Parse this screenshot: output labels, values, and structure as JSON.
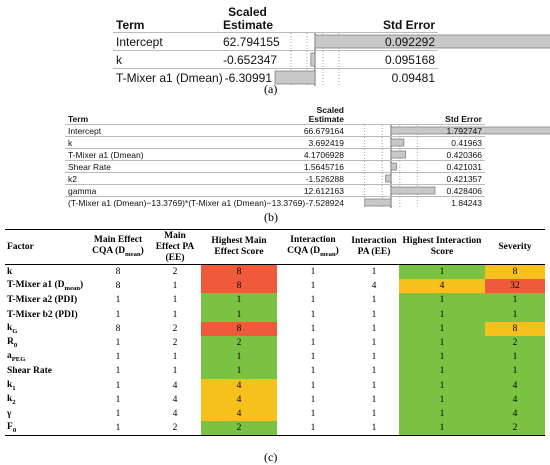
{
  "panel_a": {
    "caption": "(a)",
    "header": [
      "Term",
      "Scaled Estimate",
      "Std Error"
    ],
    "rows": [
      {
        "term": "Intercept",
        "estimate": 62.794155,
        "std_error": 0.092292
      },
      {
        "term": "k",
        "estimate": -0.652347,
        "std_error": 0.095168
      },
      {
        "term": "T-Mixer a1 (Dmean)",
        "estimate": -6.30991,
        "std_error": 0.09481
      }
    ]
  },
  "panel_b": {
    "caption": "(b)",
    "header": [
      "Term",
      "Scaled Estimate",
      "Std Error"
    ],
    "rows": [
      {
        "term": "Intercept",
        "estimate": 66.679164,
        "std_error": 1.792747
      },
      {
        "term": "k",
        "estimate": 3.692419,
        "std_error": 0.41963
      },
      {
        "term": "T-Mixer a1 (Dmean)",
        "estimate": 4.1706928,
        "std_error": 0.420366
      },
      {
        "term": "Shear Rate",
        "estimate": 1.5645716,
        "std_error": 0.421031
      },
      {
        "term": "k2",
        "estimate": -1.526288,
        "std_error": 0.421357
      },
      {
        "term": "gamma",
        "estimate": 12.612163,
        "std_error": 0.428406
      },
      {
        "term": "(T-Mixer a1 (Dmean)−13.3769)*(T-Mixer a1 (Dmean)−13.3769)",
        "estimate": -7.528924,
        "std_error": 1.84243
      }
    ]
  },
  "panel_c": {
    "caption": "(c)",
    "header": [
      [
        "Factor"
      ],
      [
        "Main Effect CQA (D",
        {
          "sub": "mean"
        },
        ")"
      ],
      [
        "Main Effect PA (EE)"
      ],
      [
        "Highest Main Effect Score"
      ],
      [
        "Interaction CQA (D",
        {
          "sub": "mean"
        },
        ")"
      ],
      [
        "Interaction PA (EE)"
      ],
      [
        "Highest Interaction Score"
      ],
      [
        "Severity"
      ]
    ],
    "colored_columns": [
      2,
      5,
      6
    ],
    "rows": [
      {
        "factor": [
          "k"
        ],
        "values": [
          8,
          2,
          8,
          1,
          1,
          1,
          8
        ],
        "colors": [
          "#ef5b3a",
          "#7cc242",
          "#f6c11d"
        ]
      },
      {
        "factor": [
          "T-Mixer a1 (D",
          {
            "sub": "mean"
          },
          ")"
        ],
        "values": [
          8,
          1,
          8,
          1,
          4,
          4,
          32
        ],
        "colors": [
          "#ef5b3a",
          "#f6c11d",
          "#ef5b3a"
        ]
      },
      {
        "factor": [
          "T-Mixer a2 (PDI)"
        ],
        "values": [
          1,
          1,
          1,
          1,
          1,
          1,
          1
        ],
        "colors": [
          "#7cc242",
          "#7cc242",
          "#7cc242"
        ]
      },
      {
        "factor": [
          "T-Mixer b2 (PDI)"
        ],
        "values": [
          1,
          1,
          1,
          1,
          1,
          1,
          1
        ],
        "colors": [
          "#7cc242",
          "#7cc242",
          "#7cc242"
        ]
      },
      {
        "factor": [
          "k",
          {
            "sub": "G"
          }
        ],
        "values": [
          8,
          2,
          8,
          1,
          1,
          1,
          8
        ],
        "colors": [
          "#ef5b3a",
          "#7cc242",
          "#f6c11d"
        ]
      },
      {
        "factor": [
          "R",
          {
            "sub": "0"
          }
        ],
        "values": [
          1,
          2,
          2,
          1,
          1,
          1,
          2
        ],
        "colors": [
          "#7cc242",
          "#7cc242",
          "#7cc242"
        ]
      },
      {
        "factor": [
          "a",
          {
            "sub": "PEG"
          }
        ],
        "values": [
          1,
          1,
          1,
          1,
          1,
          1,
          1
        ],
        "colors": [
          "#7cc242",
          "#7cc242",
          "#7cc242"
        ]
      },
      {
        "factor": [
          "Shear Rate"
        ],
        "values": [
          1,
          1,
          1,
          1,
          1,
          1,
          1
        ],
        "colors": [
          "#7cc242",
          "#7cc242",
          "#7cc242"
        ]
      },
      {
        "factor": [
          "k",
          {
            "sub": "1"
          }
        ],
        "values": [
          1,
          4,
          4,
          1,
          1,
          1,
          4
        ],
        "colors": [
          "#f6c11d",
          "#7cc242",
          "#7cc242"
        ]
      },
      {
        "factor": [
          "k",
          {
            "sub": "2"
          }
        ],
        "values": [
          1,
          4,
          4,
          1,
          1,
          1,
          4
        ],
        "colors": [
          "#f6c11d",
          "#7cc242",
          "#7cc242"
        ]
      },
      {
        "factor": [
          "γ"
        ],
        "values": [
          1,
          4,
          4,
          1,
          1,
          1,
          4
        ],
        "colors": [
          "#f6c11d",
          "#7cc242",
          "#7cc242"
        ]
      },
      {
        "factor": [
          "F",
          {
            "sub": "0"
          }
        ],
        "values": [
          1,
          2,
          2,
          1,
          1,
          1,
          2
        ],
        "colors": [
          "#7cc242",
          "#7cc242",
          "#7cc242"
        ]
      }
    ]
  }
}
